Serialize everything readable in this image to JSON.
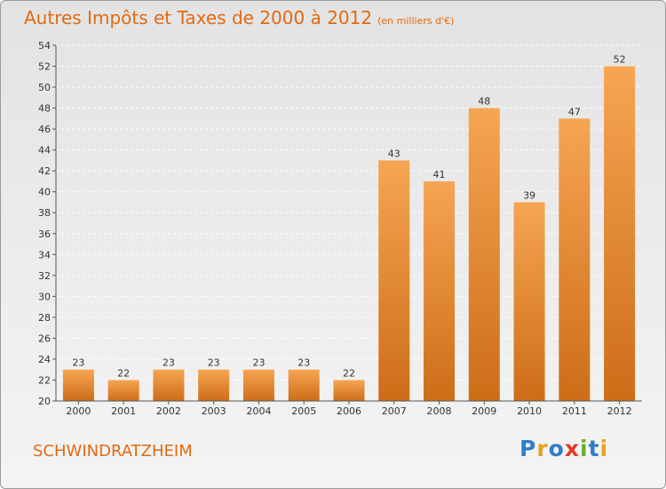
{
  "title": "Autres Impôts et Taxes de 2000 à 2012",
  "subtitle": "(en milliers d'€)",
  "commune": "SCHWINDRATZHEIM",
  "logo": {
    "text": "Proxiti",
    "letters": [
      {
        "ch": "P",
        "color": "#2e7fc8"
      },
      {
        "ch": "r",
        "color": "#e8a020"
      },
      {
        "ch": "o",
        "color": "#2e7fc8"
      },
      {
        "ch": "x",
        "color": "#e33b2a"
      },
      {
        "ch": "i",
        "color": "#6cae2d"
      },
      {
        "ch": "t",
        "color": "#2e7fc8"
      },
      {
        "ch": "i",
        "color": "#e8a020"
      }
    ]
  },
  "colors": {
    "accent": "#e26a10",
    "bar_top": "#f6a552",
    "bar_bottom": "#cd6d18",
    "grid": "#ffffff",
    "axis_text": "#333333"
  },
  "chart_data": {
    "type": "bar",
    "categories": [
      "2000",
      "2001",
      "2002",
      "2003",
      "2004",
      "2005",
      "2006",
      "2007",
      "2008",
      "2009",
      "2010",
      "2011",
      "2012"
    ],
    "values": [
      23,
      22,
      23,
      23,
      23,
      23,
      22,
      43,
      41,
      48,
      39,
      47,
      52
    ],
    "ylim": [
      20,
      54
    ],
    "yticks": [
      20,
      22,
      24,
      26,
      28,
      30,
      32,
      34,
      36,
      38,
      40,
      42,
      44,
      46,
      48,
      50,
      52,
      54
    ],
    "grid": true,
    "data_labels": true
  }
}
